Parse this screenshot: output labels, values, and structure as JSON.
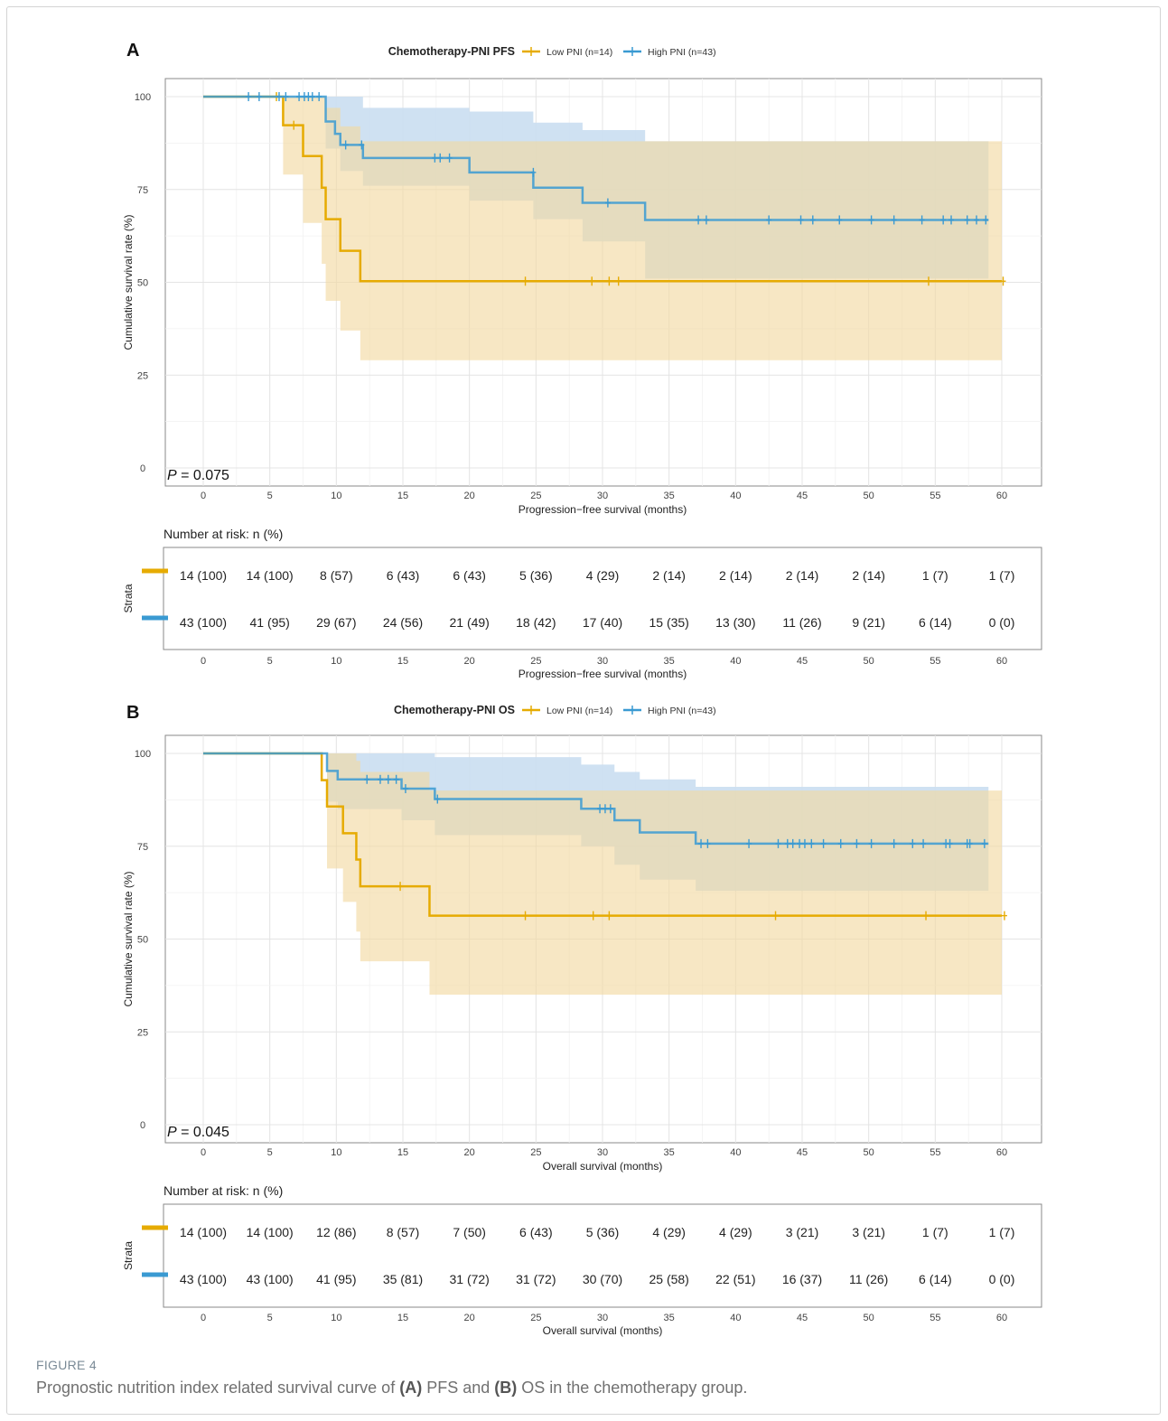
{
  "figure": {
    "label": "FIGURE 4",
    "caption_pre": "Prognostic nutrition index related survival curve of ",
    "caption_a": "(A)",
    "caption_mid": " PFS and ",
    "caption_b": "(B)",
    "caption_post": " OS in the chemotherapy group."
  },
  "chart_data": [
    {
      "type": "line",
      "panel": "A",
      "title": "Chemotherapy-PNI PFS",
      "xlabel": "Progression−free survival (months)",
      "ylabel": "Cumulative survival rate (%)",
      "xlim": [
        0,
        60
      ],
      "ylim": [
        0,
        100
      ],
      "xticks": [
        0,
        5,
        10,
        15,
        20,
        25,
        30,
        35,
        40,
        45,
        50,
        55,
        60
      ],
      "yticks": [
        0,
        25,
        50,
        75,
        100
      ],
      "grid": true,
      "legend": "top-center",
      "pvalue_prefix": "P",
      "pvalue_text": " = 0.075",
      "risk_table_title": "Number at risk: n (%)",
      "risk_ylabel": "Strata",
      "risk_times": [
        0,
        5,
        10,
        15,
        20,
        25,
        30,
        35,
        40,
        45,
        50,
        55,
        60
      ],
      "series": [
        {
          "name": "Low PNI (n=14)",
          "color": "#E6AB02",
          "fill": "#F2D9A0",
          "steps": [
            [
              0,
              100
            ],
            [
              6,
              92.3
            ],
            [
              7.5,
              84.0
            ],
            [
              8.9,
              75.5
            ],
            [
              9.2,
              67.0
            ],
            [
              10.3,
              58.5
            ],
            [
              11.8,
              50.3
            ],
            [
              60,
              50.3
            ]
          ],
          "ci": [
            [
              0,
              100,
              100
            ],
            [
              6,
              79,
              100
            ],
            [
              7.5,
              66,
              100
            ],
            [
              8.9,
              55,
              100
            ],
            [
              9.2,
              45,
              97
            ],
            [
              10.3,
              37,
              92
            ],
            [
              11.8,
              29,
              88
            ],
            [
              60,
              29,
              88
            ]
          ],
          "censors": [
            [
              5.5,
              100
            ],
            [
              6.8,
              92.3
            ],
            [
              24.2,
              50.3
            ],
            [
              29.2,
              50.3
            ],
            [
              30.5,
              50.3
            ],
            [
              31.2,
              50.3
            ],
            [
              54.5,
              50.3
            ],
            [
              60.1,
              50.3
            ]
          ],
          "at_risk": [
            "14 (100)",
            "14 (100)",
            "8 (57)",
            "6 (43)",
            "6 (43)",
            "5 (36)",
            "4 (29)",
            "2 (14)",
            "2 (14)",
            "2 (14)",
            "2 (14)",
            "1 (7)",
            "1 (7)"
          ]
        },
        {
          "name": "High PNI (n=43)",
          "color": "#3A9AD2",
          "fill": "#CADEF1",
          "steps": [
            [
              0,
              100
            ],
            [
              9.2,
              93.3
            ],
            [
              9.9,
              90.0
            ],
            [
              10.3,
              87.0
            ],
            [
              12.0,
              83.5
            ],
            [
              20.0,
              79.6
            ],
            [
              24.8,
              75.5
            ],
            [
              28.5,
              71.4
            ],
            [
              33.2,
              66.8
            ],
            [
              59,
              66.8
            ]
          ],
          "ci": [
            [
              0,
              100,
              100
            ],
            [
              9.2,
              86,
              100
            ],
            [
              10.3,
              80,
              100
            ],
            [
              12.0,
              76,
              97
            ],
            [
              20.0,
              72,
              96
            ],
            [
              24.8,
              67,
              93
            ],
            [
              28.5,
              61,
              91
            ],
            [
              33.2,
              51,
              88
            ],
            [
              59,
              51,
              88
            ]
          ],
          "censors": [
            [
              3.4,
              100
            ],
            [
              4.2,
              100
            ],
            [
              5.7,
              100
            ],
            [
              6.2,
              100
            ],
            [
              7.2,
              100
            ],
            [
              7.6,
              100
            ],
            [
              7.9,
              100
            ],
            [
              8.2,
              100
            ],
            [
              8.7,
              100
            ],
            [
              10.7,
              87.0
            ],
            [
              11.9,
              87.0
            ],
            [
              17.4,
              83.5
            ],
            [
              17.8,
              83.5
            ],
            [
              18.5,
              83.5
            ],
            [
              24.8,
              79.6
            ],
            [
              30.4,
              71.4
            ],
            [
              37.2,
              66.8
            ],
            [
              37.8,
              66.8
            ],
            [
              42.5,
              66.8
            ],
            [
              44.9,
              66.8
            ],
            [
              45.8,
              66.8
            ],
            [
              47.8,
              66.8
            ],
            [
              50.2,
              66.8
            ],
            [
              51.9,
              66.8
            ],
            [
              54.0,
              66.8
            ],
            [
              55.6,
              66.8
            ],
            [
              56.2,
              66.8
            ],
            [
              57.4,
              66.8
            ],
            [
              58.1,
              66.8
            ],
            [
              58.8,
              66.8
            ]
          ],
          "at_risk": [
            "43 (100)",
            "41 (95)",
            "29 (67)",
            "24 (56)",
            "21 (49)",
            "18 (42)",
            "17 (40)",
            "15 (35)",
            "13 (30)",
            "11 (26)",
            "9 (21)",
            "6 (14)",
            "0 (0)"
          ]
        }
      ]
    },
    {
      "type": "line",
      "panel": "B",
      "title": "Chemotherapy-PNI OS",
      "xlabel": "Overall survival (months)",
      "ylabel": "Cumulative survival rate (%)",
      "xlim": [
        0,
        60
      ],
      "ylim": [
        0,
        100
      ],
      "xticks": [
        0,
        5,
        10,
        15,
        20,
        25,
        30,
        35,
        40,
        45,
        50,
        55,
        60
      ],
      "yticks": [
        0,
        25,
        50,
        75,
        100
      ],
      "grid": true,
      "legend": "top-center",
      "pvalue_prefix": "P",
      "pvalue_text": " = 0.045",
      "risk_table_title": "Number at risk: n (%)",
      "risk_ylabel": "Strata",
      "risk_times": [
        0,
        5,
        10,
        15,
        20,
        25,
        30,
        35,
        40,
        45,
        50,
        55,
        60
      ],
      "series": [
        {
          "name": "Low PNI (n=14)",
          "color": "#E6AB02",
          "fill": "#F2D9A0",
          "steps": [
            [
              0,
              100
            ],
            [
              8.9,
              92.8
            ],
            [
              9.3,
              85.7
            ],
            [
              10.5,
              78.5
            ],
            [
              11.5,
              71.4
            ],
            [
              11.8,
              64.2
            ],
            [
              17.0,
              56.3
            ],
            [
              60,
              56.3
            ]
          ],
          "ci": [
            [
              0,
              100,
              100
            ],
            [
              9.3,
              69,
              100
            ],
            [
              10.5,
              60,
              100
            ],
            [
              11.5,
              52,
              98
            ],
            [
              11.8,
              44,
              95
            ],
            [
              17.0,
              35,
              90
            ],
            [
              60,
              35,
              90
            ]
          ],
          "censors": [
            [
              14.8,
              64.2
            ],
            [
              24.2,
              56.3
            ],
            [
              29.3,
              56.3
            ],
            [
              30.5,
              56.3
            ],
            [
              43.0,
              56.3
            ],
            [
              54.3,
              56.3
            ],
            [
              60.2,
              56.3
            ]
          ],
          "at_risk": [
            "14 (100)",
            "14 (100)",
            "12 (86)",
            "8 (57)",
            "7 (50)",
            "6 (43)",
            "5 (36)",
            "4 (29)",
            "4 (29)",
            "3 (21)",
            "3 (21)",
            "1 (7)",
            "1 (7)"
          ]
        },
        {
          "name": "High PNI (n=43)",
          "color": "#3A9AD2",
          "fill": "#CADEF1",
          "steps": [
            [
              0,
              100
            ],
            [
              9.3,
              95.3
            ],
            [
              10.1,
              93.0
            ],
            [
              14.9,
              90.5
            ],
            [
              17.4,
              87.7
            ],
            [
              28.4,
              85.1
            ],
            [
              30.9,
              82.0
            ],
            [
              32.8,
              78.7
            ],
            [
              37.0,
              75.7
            ],
            [
              59,
              75.7
            ]
          ],
          "ci": [
            [
              0,
              100,
              100
            ],
            [
              9.3,
              87,
              100
            ],
            [
              10.1,
              85,
              100
            ],
            [
              14.9,
              82,
              100
            ],
            [
              17.4,
              78,
              99
            ],
            [
              28.4,
              75,
              97
            ],
            [
              30.9,
              70,
              95
            ],
            [
              32.8,
              66,
              93
            ],
            [
              37.0,
              63,
              91
            ],
            [
              59,
              63,
              91
            ]
          ],
          "censors": [
            [
              12.3,
              93.0
            ],
            [
              13.3,
              93.0
            ],
            [
              13.9,
              93.0
            ],
            [
              14.5,
              93.0
            ],
            [
              15.2,
              90.5
            ],
            [
              17.6,
              87.7
            ],
            [
              29.8,
              85.1
            ],
            [
              30.2,
              85.1
            ],
            [
              30.6,
              85.1
            ],
            [
              37.4,
              75.7
            ],
            [
              37.9,
              75.7
            ],
            [
              41.0,
              75.7
            ],
            [
              43.2,
              75.7
            ],
            [
              43.9,
              75.7
            ],
            [
              44.3,
              75.7
            ],
            [
              44.8,
              75.7
            ],
            [
              45.2,
              75.7
            ],
            [
              45.7,
              75.7
            ],
            [
              46.6,
              75.7
            ],
            [
              47.9,
              75.7
            ],
            [
              49.1,
              75.7
            ],
            [
              50.2,
              75.7
            ],
            [
              51.9,
              75.7
            ],
            [
              53.3,
              75.7
            ],
            [
              54.1,
              75.7
            ],
            [
              55.8,
              75.7
            ],
            [
              56.1,
              75.7
            ],
            [
              57.4,
              75.7
            ],
            [
              57.6,
              75.7
            ],
            [
              58.7,
              75.7
            ]
          ],
          "at_risk": [
            "43 (100)",
            "43 (100)",
            "41 (95)",
            "35 (81)",
            "31 (72)",
            "31 (72)",
            "30 (70)",
            "25 (58)",
            "22 (51)",
            "16 (37)",
            "11 (26)",
            "6 (14)",
            "0 (0)"
          ]
        }
      ]
    }
  ]
}
